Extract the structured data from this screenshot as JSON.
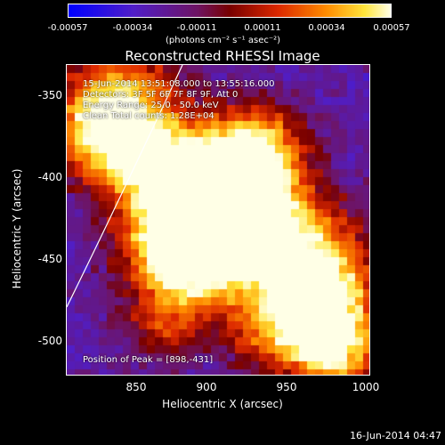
{
  "colorbar": {
    "ticks": [
      "-0.00057",
      "-0.00034",
      "-0.00011",
      "0.00011",
      "0.00034",
      "0.00057"
    ],
    "units": "(photons cm",
    "units_full": "(photons cm⁻² s⁻¹ asec⁻²)"
  },
  "plot": {
    "title": "Reconstructed RHESSI Image",
    "xlabel": "Heliocentric X (arcsec)",
    "ylabel": "Heliocentric Y (arcsec)",
    "xticks": [
      "850",
      "900",
      "950",
      "1000"
    ],
    "yticks": [
      "-350",
      "-400",
      "-450",
      "-500"
    ]
  },
  "overlay": {
    "time_range": "15-Jun-2014 13:51:08.000 to 13:55:16.000",
    "detectors": "Detectors: 3F 5F 6F 7F 8F 9F, Att 0",
    "energy": "Energy Range: 25.0 - 50.0 keV",
    "algorithm": "Clean     Total counts: 1.28E+04",
    "peak": "Position of Peak = [898,-431]"
  },
  "footer": {
    "timestamp": "16-Jun-2014 04:47"
  },
  "colors": {
    "low": "#0000ff",
    "mid": "#b30000",
    "high": "#ffffc0"
  }
}
